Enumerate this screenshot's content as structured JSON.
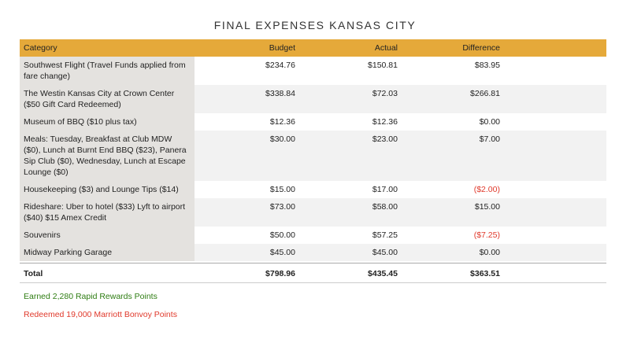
{
  "title": "FINAL EXPENSES KANSAS CITY",
  "table": {
    "header": [
      "Category",
      "Budget",
      "Actual",
      "Difference"
    ],
    "rows": [
      [
        "Southwest Flight (Travel Funds applied from fare change)",
        "$234.76",
        "$150.81",
        "$83.95"
      ],
      [
        "The Westin Kansas City at Crown Center ($50 Gift Card Redeemed)",
        "$338.84",
        "$72.03",
        "$266.81"
      ],
      [
        "Museum of BBQ ($10 plus tax)",
        "$12.36",
        "$12.36",
        "$0.00"
      ],
      [
        "Meals: Tuesday, Breakfast at Club MDW ($0), Lunch at Burnt End BBQ ($23), Panera Sip Club ($0), Wednesday, Lunch at Escape Lounge ($0)",
        "$30.00",
        "$23.00",
        "$7.00"
      ],
      [
        "Housekeeping ($3) and Lounge Tips ($14)",
        "$15.00",
        "$17.00",
        "($2.00)"
      ],
      [
        "Rideshare: Uber to hotel ($33) Lyft to airport ($40) $15 Amex Credit",
        "$73.00",
        "$58.00",
        "$15.00"
      ],
      [
        "Souvenirs",
        "$50.00",
        "$57.25",
        "($7.25)"
      ],
      [
        "Midway Parking Garage",
        "$45.00",
        "$45.00",
        "$0.00"
      ]
    ],
    "total": [
      "Total",
      "$798.96",
      "$435.45",
      "$363.51"
    ]
  },
  "notes": [
    "Earned 2,280 Rapid Rewards Points",
    "Redeemed 19,000 Marriott Bonvoy Points"
  ]
}
